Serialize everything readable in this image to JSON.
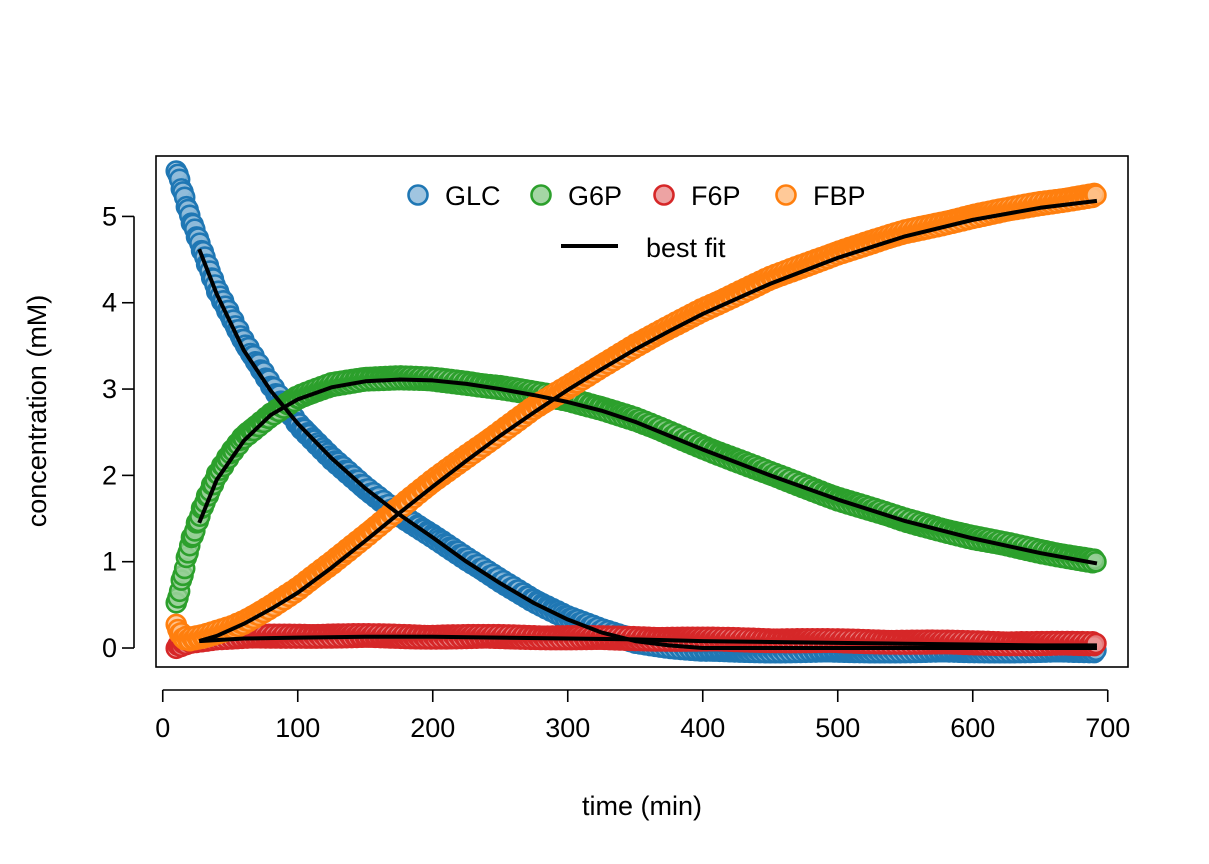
{
  "chart_data": {
    "type": "scatter",
    "title": "",
    "xlabel": "time (min)",
    "ylabel": "concentration (mM)",
    "xlim": [
      -5,
      715
    ],
    "ylim": [
      -0.22,
      5.7
    ],
    "xticks": [
      0,
      100,
      200,
      300,
      400,
      500,
      600,
      700
    ],
    "yticks": [
      0,
      1,
      2,
      3,
      4,
      5
    ],
    "grid": false,
    "legend": {
      "position": "top-center",
      "entries": [
        "GLC",
        "G6P",
        "F6P",
        "FBP"
      ],
      "fit_label": "best fit"
    },
    "x_range_points": [
      10,
      692
    ],
    "series": [
      {
        "name": "GLC",
        "color": "#1f77b4",
        "fill": "#8fbbda",
        "x": [
          10,
          20,
          40,
          60,
          80,
          100,
          125,
          150,
          175,
          200,
          225,
          250,
          275,
          300,
          325,
          350,
          375,
          400,
          450,
          500,
          550,
          600,
          650,
          692
        ],
        "y": [
          5.55,
          5.0,
          4.15,
          3.55,
          3.05,
          2.6,
          2.2,
          1.85,
          1.55,
          1.3,
          1.03,
          0.78,
          0.55,
          0.35,
          0.2,
          0.08,
          0.02,
          -0.02,
          -0.03,
          -0.03,
          -0.03,
          -0.03,
          -0.03,
          -0.03
        ]
      },
      {
        "name": "G6P",
        "color": "#2ca02c",
        "fill": "#95cf95",
        "x": [
          10,
          15,
          20,
          30,
          40,
          50,
          60,
          80,
          100,
          125,
          150,
          175,
          200,
          225,
          250,
          275,
          300,
          325,
          350,
          400,
          450,
          500,
          550,
          600,
          650,
          692
        ],
        "y": [
          0.5,
          0.85,
          1.2,
          1.65,
          2.0,
          2.25,
          2.45,
          2.7,
          2.9,
          3.05,
          3.12,
          3.13,
          3.11,
          3.07,
          3.02,
          2.95,
          2.88,
          2.78,
          2.65,
          2.33,
          2.02,
          1.73,
          1.48,
          1.28,
          1.12,
          1.0
        ]
      },
      {
        "name": "F6P",
        "color": "#d62728",
        "fill": "#ea9393",
        "x": [
          10,
          20,
          40,
          60,
          100,
          150,
          200,
          250,
          300,
          350,
          400,
          450,
          500,
          550,
          600,
          650,
          692
        ],
        "y": [
          0.02,
          0.08,
          0.12,
          0.13,
          0.14,
          0.14,
          0.13,
          0.13,
          0.12,
          0.11,
          0.1,
          0.09,
          0.08,
          0.07,
          0.06,
          0.05,
          0.05
        ]
      },
      {
        "name": "FBP",
        "color": "#ff7f0e",
        "fill": "#ffbf86",
        "x": [
          10,
          15,
          20,
          30,
          40,
          50,
          60,
          80,
          100,
          125,
          150,
          175,
          200,
          225,
          250,
          275,
          300,
          325,
          350,
          375,
          400,
          450,
          500,
          550,
          600,
          650,
          692
        ],
        "y": [
          0.25,
          0.12,
          0.1,
          0.13,
          0.18,
          0.23,
          0.3,
          0.48,
          0.68,
          0.98,
          1.3,
          1.62,
          1.93,
          2.22,
          2.5,
          2.78,
          3.02,
          3.27,
          3.5,
          3.71,
          3.92,
          4.28,
          4.58,
          4.82,
          5.0,
          5.15,
          5.25
        ]
      }
    ],
    "best_fit": {
      "color": "#000000",
      "lines": [
        {
          "x": [
            27,
            40,
            60,
            80,
            100,
            125,
            150,
            175,
            200,
            225,
            250,
            275,
            300,
            325,
            350,
            375,
            400,
            450,
            500,
            550,
            600,
            650,
            692
          ],
          "y": [
            4.62,
            4.1,
            3.45,
            2.98,
            2.6,
            2.2,
            1.85,
            1.55,
            1.28,
            1.0,
            0.75,
            0.52,
            0.33,
            0.18,
            0.08,
            0.03,
            0.0,
            0.0,
            0.0,
            0.0,
            0.0,
            0.0,
            0.0
          ]
        },
        {
          "x": [
            27,
            40,
            60,
            80,
            100,
            125,
            150,
            175,
            200,
            225,
            250,
            275,
            300,
            325,
            350,
            400,
            450,
            500,
            550,
            600,
            650,
            692
          ],
          "y": [
            1.45,
            1.95,
            2.4,
            2.7,
            2.88,
            3.02,
            3.09,
            3.11,
            3.1,
            3.06,
            3.0,
            2.93,
            2.85,
            2.75,
            2.62,
            2.3,
            2.0,
            1.72,
            1.47,
            1.27,
            1.1,
            0.98
          ]
        },
        {
          "x": [
            27,
            60,
            100,
            150,
            200,
            250,
            300,
            350,
            400,
            450,
            500,
            550,
            600,
            650,
            692
          ],
          "y": [
            0.08,
            0.11,
            0.12,
            0.13,
            0.13,
            0.12,
            0.11,
            0.1,
            0.08,
            0.07,
            0.06,
            0.05,
            0.04,
            0.03,
            0.03
          ]
        },
        {
          "x": [
            27,
            40,
            60,
            80,
            100,
            125,
            150,
            175,
            200,
            225,
            250,
            275,
            300,
            325,
            350,
            375,
            400,
            450,
            500,
            550,
            600,
            650,
            692
          ],
          "y": [
            0.08,
            0.14,
            0.28,
            0.45,
            0.64,
            0.93,
            1.24,
            1.56,
            1.87,
            2.17,
            2.46,
            2.73,
            2.99,
            3.23,
            3.46,
            3.67,
            3.87,
            4.22,
            4.52,
            4.77,
            4.96,
            5.1,
            5.18
          ]
        }
      ]
    }
  }
}
